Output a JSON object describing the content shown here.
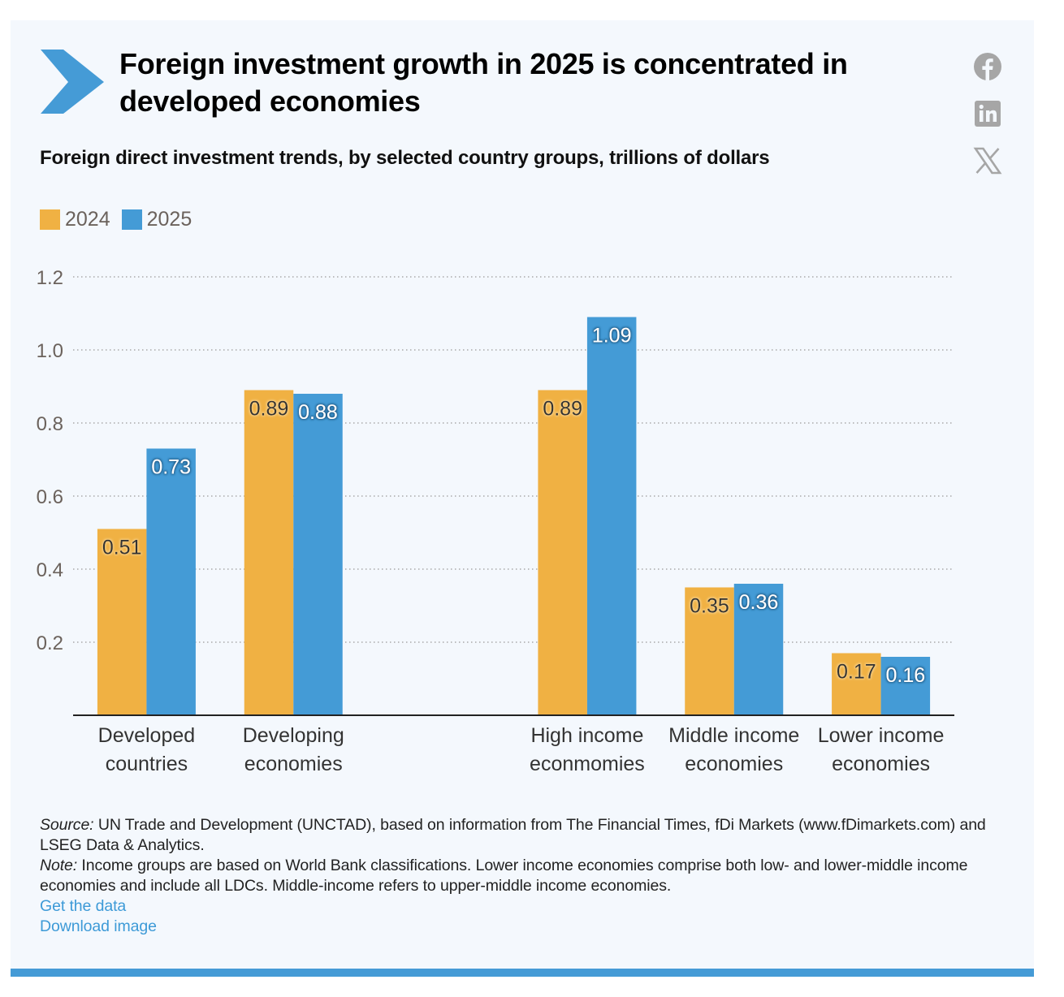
{
  "header": {
    "title": "Foreign investment growth in 2025 is concentrated in developed economies",
    "subtitle": "Foreign direct investment trends, by selected country groups, trillions of dollars",
    "brand_icon": "chevron-right-icon"
  },
  "share": {
    "items": [
      {
        "name": "facebook-icon",
        "label": "Facebook"
      },
      {
        "name": "linkedin-icon",
        "label": "LinkedIn"
      },
      {
        "name": "x-icon",
        "label": "X"
      }
    ]
  },
  "colors": {
    "series_2024": "#f0b143",
    "series_2025": "#449bd6",
    "accent": "#459bd6",
    "background": "#f4f8fd",
    "link": "#3d9ad7",
    "icon_gray": "#a6a6a6"
  },
  "chart_data": {
    "type": "bar",
    "title": "Foreign investment growth in 2025 is concentrated in developed economies",
    "subtitle": "Foreign direct investment trends, by selected country groups, trillions of dollars",
    "xlabel": "",
    "ylabel": "",
    "categories": [
      [
        "Developed",
        "countries"
      ],
      [
        "Developing",
        "economies"
      ],
      [
        "",
        ""
      ],
      [
        "High income",
        "econmomies"
      ],
      [
        "Middle income",
        "economies"
      ],
      [
        "Lower income",
        "economies"
      ]
    ],
    "series": [
      {
        "name": "2024",
        "color": "#f0b143",
        "label_color": "#333333",
        "values": [
          0.51,
          0.89,
          null,
          0.89,
          0.35,
          0.17
        ]
      },
      {
        "name": "2025",
        "color": "#449bd6",
        "label_color": "#ffffff",
        "values": [
          0.73,
          0.88,
          null,
          1.09,
          0.36,
          0.16
        ]
      }
    ],
    "ylim": [
      0,
      1.2
    ],
    "yticks": [
      0.2,
      0.4,
      0.6,
      0.8,
      1.0,
      1.2
    ],
    "ytick_labels": [
      "0.2",
      "0.4",
      "0.6",
      "0.8",
      "1.0",
      "1.2"
    ],
    "grid": true,
    "grid_style": "dotted",
    "legend": {
      "placement": "top-left",
      "entries": [
        "2024",
        "2025"
      ]
    },
    "data_labels": true
  },
  "notes": {
    "source_label": "Source:",
    "source_text": " UN Trade and Development (UNCTAD), based on information from The Financial Times, fDi Markets (www.fDimarkets.com) and LSEG Data & Analytics.",
    "note_label": "Note:",
    "note_text": " Income groups are based on World Bank classifications. Lower income economies comprise both low- and lower-middle income economies and include all LDCs. Middle-income refers to upper-middle income economies.",
    "link_data": "Get the data",
    "link_image": "Download image"
  }
}
